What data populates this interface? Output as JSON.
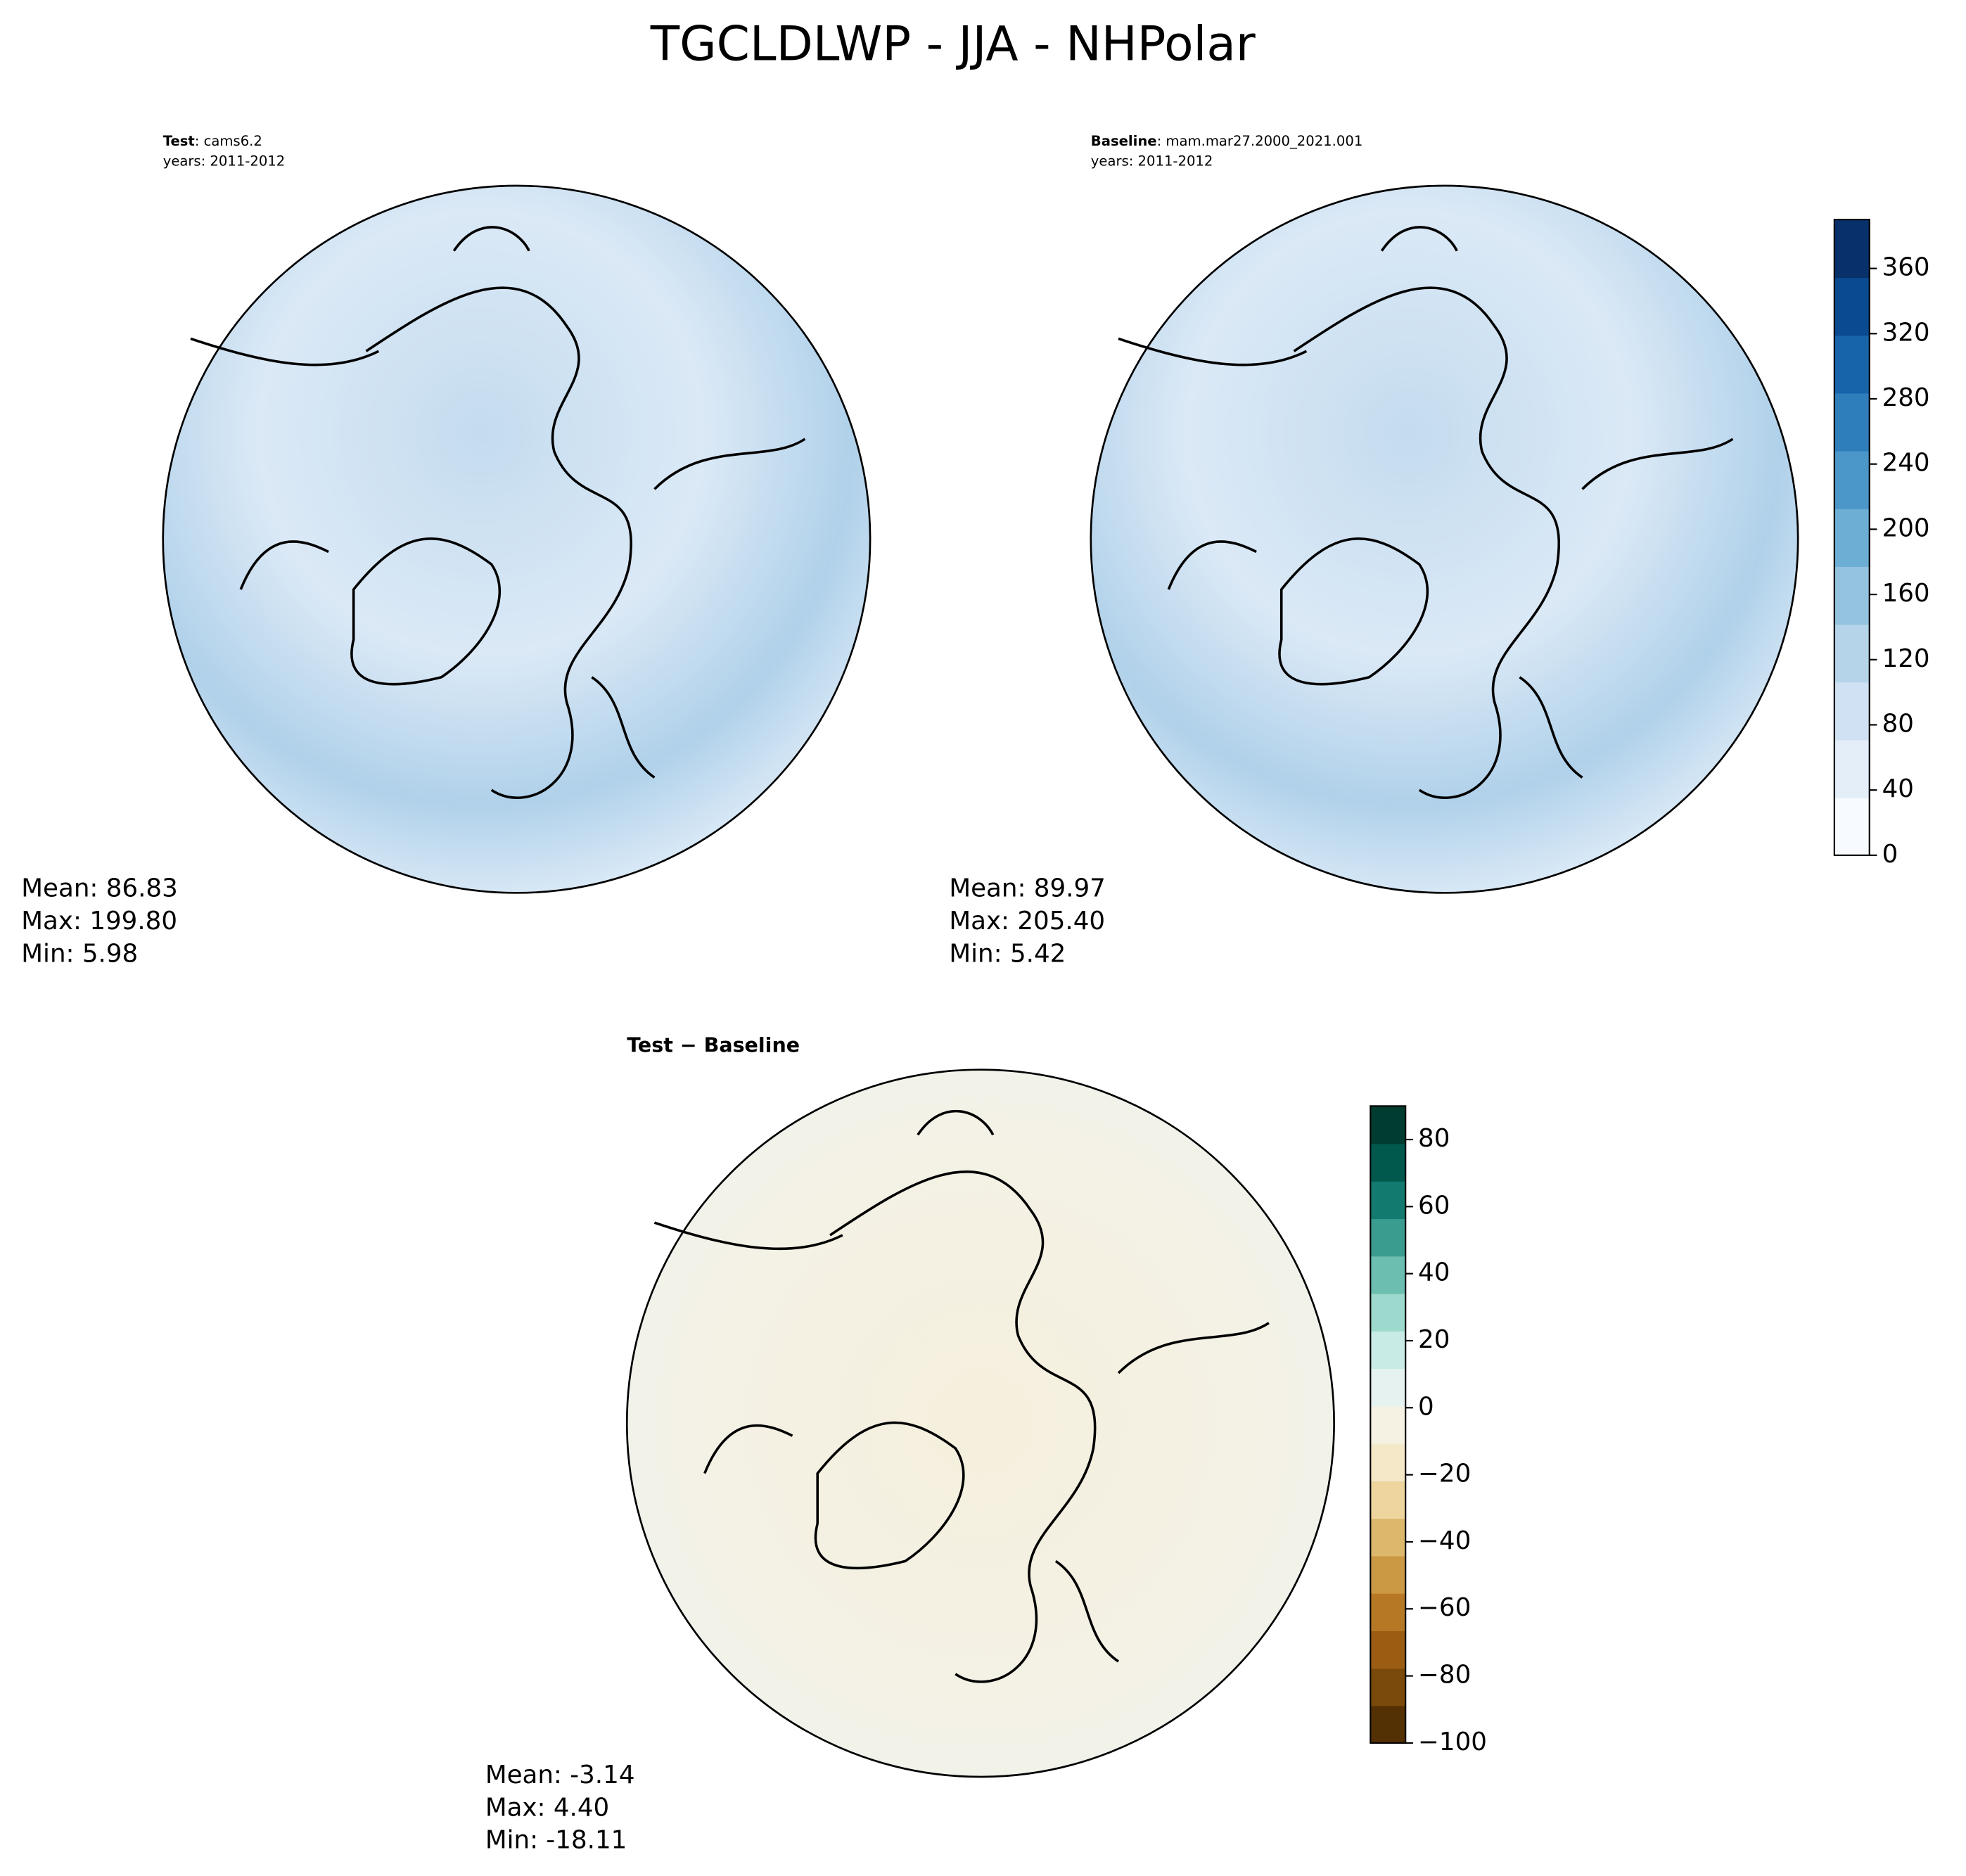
{
  "title": "TGCLDLWP - JJA - NHPolar",
  "panels": [
    {
      "label_bold": "Test",
      "label_text": ": cams6.2",
      "years": "years: 2011-2012",
      "stats": [
        "Mean: 86.83",
        "Max: 199.80",
        "Min:  5.98"
      ]
    },
    {
      "label_bold": "Baseline",
      "label_text": ": mam.mar27.2000_2021.001",
      "years": "years: 2011-2012",
      "stats": [
        "Mean: 89.97",
        "Max: 205.40",
        "Min:  5.42"
      ]
    },
    {
      "label_bold": "Test − Baseline",
      "stats": [
        "Mean: -3.14",
        "Max:  4.40",
        "Min: -18.11"
      ]
    }
  ],
  "colorbars": [
    {
      "lim": [
        0,
        390
      ],
      "ticks": [
        0,
        40,
        80,
        120,
        160,
        200,
        240,
        280,
        320,
        360
      ],
      "cmap": [
        "#f7fbff",
        "#e3eef9",
        "#cfe1f2",
        "#b5d4e9",
        "#93c3df",
        "#6daed5",
        "#4b97c9",
        "#2f7ebc",
        "#1864aa",
        "#0a4a90",
        "#08306b"
      ]
    },
    {
      "lim": [
        -100,
        90
      ],
      "ticks": [
        {
          "value": -100,
          "label": "−100"
        },
        {
          "value": -80,
          "label": "−80"
        },
        {
          "value": -60,
          "label": "−60"
        },
        {
          "value": -40,
          "label": "−40"
        },
        {
          "value": -20,
          "label": "−20"
        },
        0,
        20,
        40,
        60,
        80
      ],
      "cmap": [
        "#543005",
        "#7a4a0c",
        "#9c5d13",
        "#b77825",
        "#cb9843",
        "#dcb76c",
        "#eed59e",
        "#f5e8c8",
        "#f5f1e3",
        "#e6f2ef",
        "#c8ebe5",
        "#9dd9cc",
        "#6cbfb0",
        "#3a9b8f",
        "#137a6f",
        "#00594c",
        "#003c30"
      ]
    }
  ]
}
